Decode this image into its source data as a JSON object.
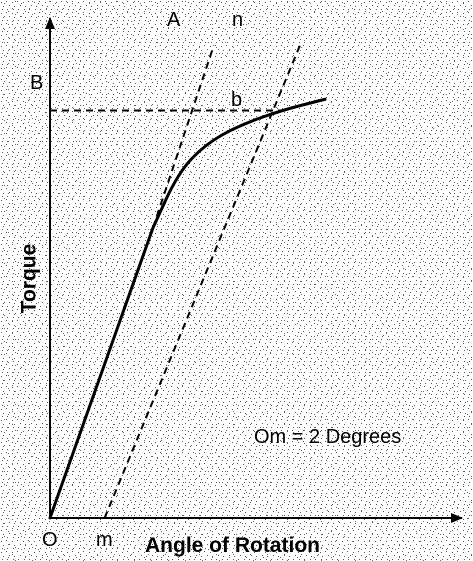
{
  "chart_data": {
    "type": "line",
    "xlabel": "Angle of Rotation",
    "ylabel": "Torque",
    "annotation": "Om = 2 Degrees",
    "point_labels": {
      "origin": "O",
      "offset": "m",
      "torque_level": "B",
      "intersection": "b",
      "elastic_line": "A",
      "offset_line": "n"
    },
    "grid": false,
    "background_texture": "stippled",
    "ink_color": "#000000",
    "series": [
      {
        "curve_points": [
          [
            0,
            0
          ],
          [
            2.45,
            11.6
          ],
          [
            3.05,
            13.8
          ],
          [
            3.7,
            14.95
          ],
          [
            4.5,
            15.7
          ],
          [
            5.5,
            16.3
          ],
          [
            6.55,
            16.75
          ]
        ]
      }
    ],
    "offset_line_points": [
      [
        1.3,
        0
      ],
      [
        5.95,
        18.9
      ]
    ],
    "elastic_line_points": [
      [
        2.45,
        11.6
      ],
      [
        3.9,
        18.9
      ]
    ],
    "intersection_point": [
      5.5,
      16.3
    ]
  }
}
